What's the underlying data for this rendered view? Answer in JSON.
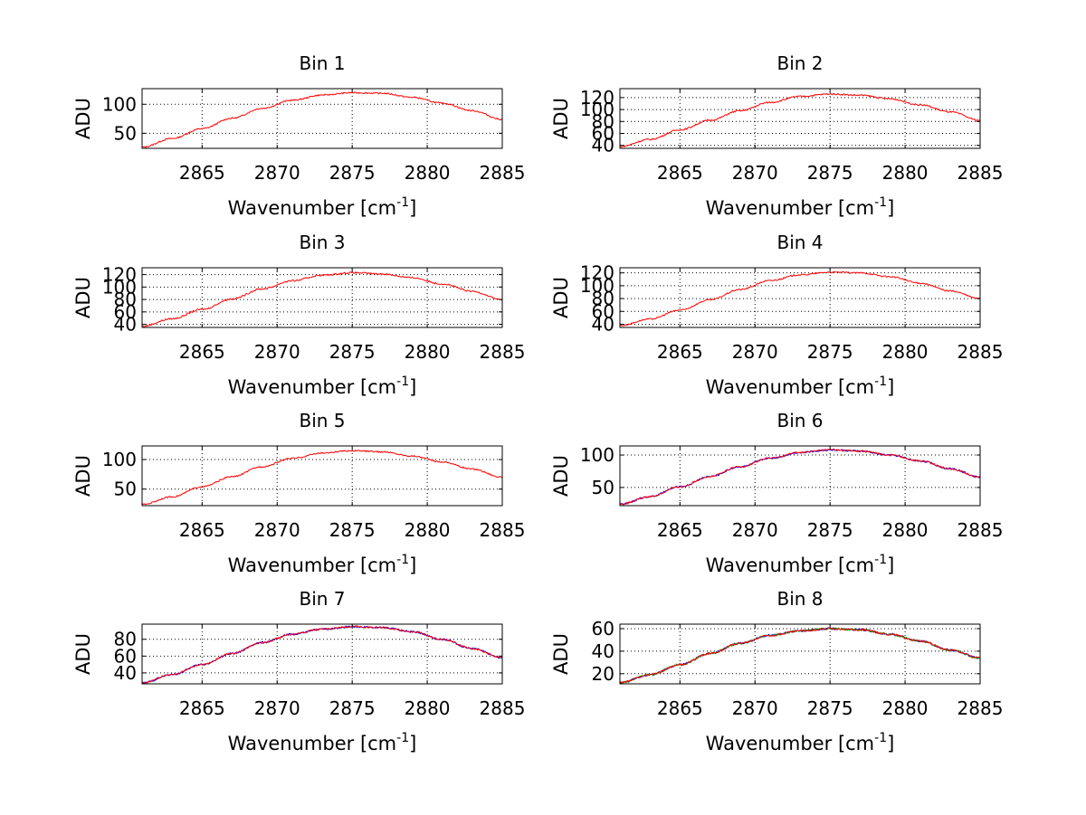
{
  "figure": {
    "xlabel_prefix": "Wavenumber [cm",
    "xlabel_exp": "-1",
    "xlabel_suffix": "]",
    "ylabel": "ADU"
  },
  "chart_data": [
    {
      "type": "line",
      "title": "Bin 1",
      "xlabel": "Wavenumber [cm-1]",
      "ylabel": "ADU",
      "xlim": [
        2861,
        2885
      ],
      "ylim": [
        24,
        127
      ],
      "xticks": [
        2865,
        2870,
        2875,
        2880,
        2885
      ],
      "yticks": [
        50,
        100
      ],
      "grid": true,
      "noise": 1.2,
      "series": [
        {
          "name": "trace-red",
          "color": "#ff0000",
          "x": [
            2861,
            2863,
            2865,
            2867,
            2869,
            2871,
            2873,
            2875,
            2877,
            2879,
            2881,
            2883,
            2885
          ],
          "values": [
            26,
            41,
            58,
            76,
            93,
            107,
            116,
            120,
            119,
            112,
            102,
            89,
            74
          ]
        }
      ]
    },
    {
      "type": "line",
      "title": "Bin 2",
      "xlabel": "Wavenumber [cm-1]",
      "ylabel": "ADU",
      "xlim": [
        2861,
        2885
      ],
      "ylim": [
        35,
        135
      ],
      "xticks": [
        2865,
        2870,
        2875,
        2880,
        2885
      ],
      "yticks": [
        40,
        60,
        80,
        100,
        120
      ],
      "grid": true,
      "noise": 1.3,
      "series": [
        {
          "name": "trace-red",
          "color": "#ff0000",
          "x": [
            2861,
            2863,
            2865,
            2867,
            2869,
            2871,
            2873,
            2875,
            2877,
            2879,
            2881,
            2883,
            2885
          ],
          "values": [
            38,
            50,
            66,
            82,
            98,
            112,
            122,
            126,
            124,
            118,
            108,
            96,
            82
          ]
        }
      ]
    },
    {
      "type": "line",
      "title": "Bin 3",
      "xlabel": "Wavenumber [cm-1]",
      "ylabel": "ADU",
      "xlim": [
        2861,
        2885
      ],
      "ylim": [
        35,
        131
      ],
      "xticks": [
        2865,
        2870,
        2875,
        2880,
        2885
      ],
      "yticks": [
        40,
        60,
        80,
        100,
        120
      ],
      "grid": true,
      "noise": 1.3,
      "series": [
        {
          "name": "trace-red",
          "color": "#ff0000",
          "x": [
            2861,
            2863,
            2865,
            2867,
            2869,
            2871,
            2873,
            2875,
            2877,
            2879,
            2881,
            2883,
            2885
          ],
          "values": [
            37,
            49,
            64,
            81,
            97,
            110,
            119,
            123,
            121,
            115,
            105,
            93,
            80
          ]
        }
      ]
    },
    {
      "type": "line",
      "title": "Bin 4",
      "xlabel": "Wavenumber [cm-1]",
      "ylabel": "ADU",
      "xlim": [
        2861,
        2885
      ],
      "ylim": [
        35,
        128
      ],
      "xticks": [
        2865,
        2870,
        2875,
        2880,
        2885
      ],
      "yticks": [
        40,
        60,
        80,
        100,
        120
      ],
      "grid": true,
      "noise": 1.1,
      "series": [
        {
          "name": "trace-red",
          "color": "#ff0000",
          "x": [
            2861,
            2863,
            2865,
            2867,
            2869,
            2871,
            2873,
            2875,
            2877,
            2879,
            2881,
            2883,
            2885
          ],
          "values": [
            38,
            48,
            62,
            78,
            94,
            108,
            117,
            121,
            120,
            114,
            104,
            92,
            80
          ]
        }
      ]
    },
    {
      "type": "line",
      "title": "Bin 5",
      "xlabel": "Wavenumber [cm-1]",
      "ylabel": "ADU",
      "xlim": [
        2861,
        2885
      ],
      "ylim": [
        22,
        123
      ],
      "xticks": [
        2865,
        2870,
        2875,
        2880,
        2885
      ],
      "yticks": [
        50,
        100
      ],
      "grid": true,
      "noise": 1.2,
      "series": [
        {
          "name": "trace-red",
          "color": "#ff0000",
          "x": [
            2861,
            2863,
            2865,
            2867,
            2869,
            2871,
            2873,
            2875,
            2877,
            2879,
            2881,
            2883,
            2885
          ],
          "values": [
            24,
            37,
            54,
            71,
            88,
            102,
            111,
            115,
            113,
            106,
            96,
            84,
            70
          ]
        }
      ]
    },
    {
      "type": "line",
      "title": "Bin 6",
      "xlabel": "Wavenumber [cm-1]",
      "ylabel": "ADU",
      "xlim": [
        2861,
        2885
      ],
      "ylim": [
        22,
        114
      ],
      "xticks": [
        2865,
        2870,
        2875,
        2880,
        2885
      ],
      "yticks": [
        50,
        100
      ],
      "grid": true,
      "noise": 1.4,
      "series": [
        {
          "name": "trace-blue",
          "color": "#0000ff",
          "x": [
            2861,
            2863,
            2865,
            2867,
            2869,
            2871,
            2873,
            2875,
            2877,
            2879,
            2881,
            2883,
            2885
          ],
          "values": [
            24,
            36,
            51,
            67,
            82,
            95,
            104,
            108,
            106,
            100,
            91,
            79,
            66
          ]
        },
        {
          "name": "trace-red",
          "color": "#ff0000",
          "x": [
            2861,
            2863,
            2865,
            2867,
            2869,
            2871,
            2873,
            2875,
            2877,
            2879,
            2881,
            2883,
            2885
          ],
          "values": [
            24,
            36,
            51,
            67,
            82,
            95,
            104,
            108,
            106,
            100,
            91,
            79,
            66
          ]
        }
      ]
    },
    {
      "type": "line",
      "title": "Bin 7",
      "xlabel": "Wavenumber [cm-1]",
      "ylabel": "ADU",
      "xlim": [
        2861,
        2885
      ],
      "ylim": [
        27,
        98
      ],
      "xticks": [
        2865,
        2870,
        2875,
        2880,
        2885
      ],
      "yticks": [
        40,
        60,
        80
      ],
      "grid": true,
      "noise": 1.1,
      "series": [
        {
          "name": "trace-blue",
          "color": "#0000ff",
          "x": [
            2861,
            2863,
            2865,
            2867,
            2869,
            2871,
            2873,
            2875,
            2877,
            2879,
            2881,
            2883,
            2885
          ],
          "values": [
            28,
            38,
            50,
            63,
            76,
            86,
            92,
            95,
            94,
            89,
            80,
            69,
            58
          ]
        },
        {
          "name": "trace-red",
          "color": "#ff0000",
          "x": [
            2861,
            2863,
            2865,
            2867,
            2869,
            2871,
            2873,
            2875,
            2877,
            2879,
            2881,
            2883,
            2885
          ],
          "values": [
            28,
            38,
            50,
            63,
            76,
            86,
            92,
            95,
            94,
            89,
            80,
            69,
            58
          ]
        }
      ]
    },
    {
      "type": "line",
      "title": "Bin 8",
      "xlabel": "Wavenumber [cm-1]",
      "ylabel": "ADU",
      "xlim": [
        2861,
        2885
      ],
      "ylim": [
        11,
        64
      ],
      "xticks": [
        2865,
        2870,
        2875,
        2880,
        2885
      ],
      "yticks": [
        20,
        40,
        60
      ],
      "grid": true,
      "noise": 0.9,
      "series": [
        {
          "name": "trace-blue",
          "color": "#0000ff",
          "x": [
            2861,
            2863,
            2865,
            2867,
            2869,
            2871,
            2873,
            2875,
            2877,
            2879,
            2881,
            2883,
            2885
          ],
          "values": [
            12,
            19,
            28,
            38,
            47,
            54,
            58,
            60,
            59,
            55,
            49,
            41,
            34
          ]
        },
        {
          "name": "trace-green",
          "color": "#00aa00",
          "x": [
            2861,
            2863,
            2865,
            2867,
            2869,
            2871,
            2873,
            2875,
            2877,
            2879,
            2881,
            2883,
            2885
          ],
          "values": [
            12,
            19,
            28,
            38,
            47,
            54,
            58,
            60,
            59,
            55,
            49,
            41,
            34
          ]
        },
        {
          "name": "trace-red",
          "color": "#ff0000",
          "x": [
            2861,
            2863,
            2865,
            2867,
            2869,
            2871,
            2873,
            2875,
            2877,
            2879,
            2881,
            2883,
            2885
          ],
          "values": [
            12,
            19,
            28,
            38,
            47,
            54,
            58,
            60,
            59,
            55,
            49,
            41,
            34
          ]
        }
      ]
    }
  ]
}
